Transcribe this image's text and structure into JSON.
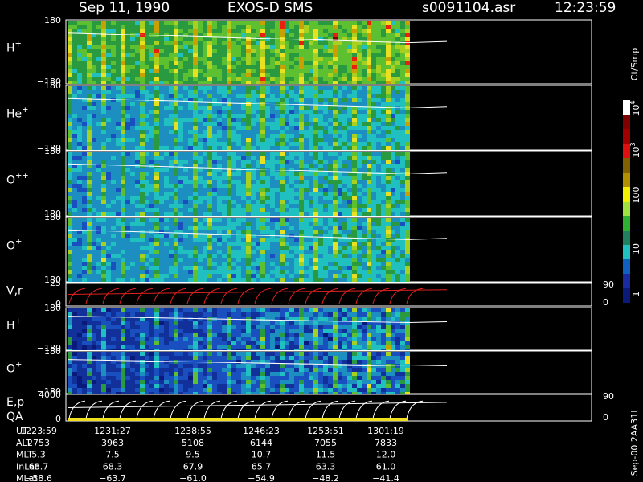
{
  "header": {
    "date": "Sep 11, 1990",
    "instrument": "EXOS-D SMS",
    "file": "s0091104.asr",
    "time": "12:23:59"
  },
  "panels": [
    {
      "label": "H",
      "sup": "+",
      "top": "180",
      "bottom": "−180"
    },
    {
      "label": "He",
      "sup": "+",
      "top": "180",
      "bottom": "−180"
    },
    {
      "label": "O",
      "sup": "++",
      "top": "180",
      "bottom": "−180"
    },
    {
      "label": "O",
      "sup": "+",
      "top": "180",
      "bottom": "−180"
    },
    {
      "label": "V,r",
      "top": "25",
      "bottom": "0",
      "right_top": "90",
      "right_bottom": "0"
    },
    {
      "label": "H",
      "sup": "+",
      "top": "180",
      "bottom": "−180"
    },
    {
      "label": "O",
      "sup": "+",
      "top": "180",
      "bottom": "−180"
    },
    {
      "label": "E,p",
      "label2": "QA",
      "top": "4000",
      "bottom": "0",
      "right_top": "90",
      "right_bottom": "0"
    }
  ],
  "colorbar": {
    "unit": "Ct/Smp",
    "ticks": [
      {
        "base": "10",
        "exp": "4"
      },
      {
        "base": "10",
        "exp": "3"
      },
      {
        "base": "100"
      },
      {
        "base": "10"
      },
      {
        "base": "1"
      }
    ]
  },
  "footer": {
    "rows": [
      {
        "name": "UT",
        "values": [
          "1223:59",
          "1231:27",
          "1238:55",
          "1246:23",
          "1253:51",
          "1301:19"
        ]
      },
      {
        "name": "ALT",
        "values": [
          "2753",
          "3963",
          "5108",
          "6144",
          "7055",
          "7833"
        ]
      },
      {
        "name": "MLT",
        "values": [
          "5.3",
          "7.5",
          "9.5",
          "10.7",
          "11.5",
          "12.0"
        ]
      },
      {
        "name": "InLat",
        "values": [
          "63.7",
          "68.3",
          "67.9",
          "65.7",
          "63.3",
          "61.0"
        ]
      },
      {
        "name": "MLat",
        "values": [
          "−58.6",
          "−63.7",
          "−61.0",
          "−54.9",
          "−48.2",
          "−41.4"
        ]
      }
    ]
  },
  "side_label": "Sep-00 2AA31L"
}
